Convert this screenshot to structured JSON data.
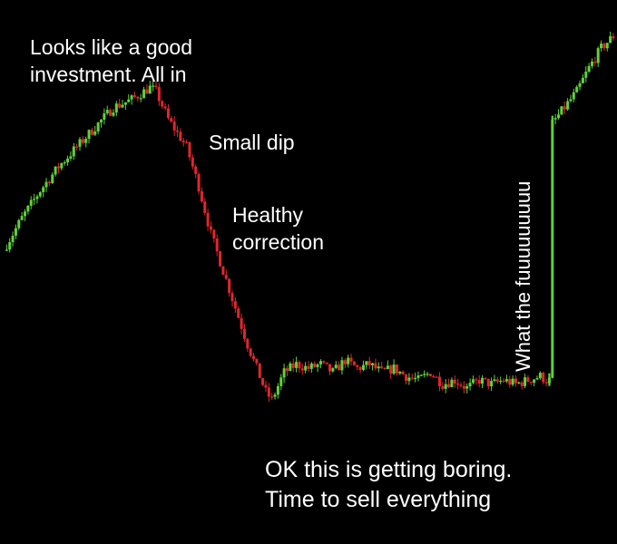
{
  "colors": {
    "background": "#000000",
    "up": "#5fd23a",
    "down": "#e0262e",
    "text": "#ffffff"
  },
  "annotations": {
    "peak": "Looks like a good\ninvestment. All in",
    "small_dip": "Small dip",
    "healthy_correction": "Healthy\ncorrection",
    "boring": "OK this is getting boring.\nTime to sell everything",
    "pump": "What the fuuuuuuuuu"
  },
  "chart_data": {
    "type": "line",
    "style": "candlestick",
    "grid": false,
    "title": "",
    "xlabel": "",
    "ylabel": "",
    "xlim": [
      0,
      100
    ],
    "ylim": [
      0,
      100
    ],
    "x": [
      0,
      3,
      6,
      9,
      12,
      15,
      18,
      21,
      24,
      25,
      27,
      30,
      32,
      34,
      37,
      40,
      43,
      44,
      46,
      48,
      50,
      52,
      54,
      56,
      58,
      60,
      62,
      64,
      66,
      68,
      70,
      72,
      74,
      76,
      78,
      80,
      82,
      84,
      86,
      88,
      89,
      89.5,
      90,
      92,
      94,
      96,
      98,
      100
    ],
    "series": [
      {
        "values": [
          46,
          54,
          61,
          67,
          72,
          77,
          82,
          84,
          87,
          86,
          79,
          72,
          62,
          50,
          36,
          22,
          10,
          8,
          15,
          17,
          16,
          17,
          15,
          18,
          16,
          17,
          15,
          16,
          14,
          13,
          15,
          12,
          13,
          11,
          13,
          12,
          13,
          12,
          13,
          14,
          13,
          13,
          78,
          82,
          86,
          92,
          97,
          100
        ]
      }
    ]
  }
}
